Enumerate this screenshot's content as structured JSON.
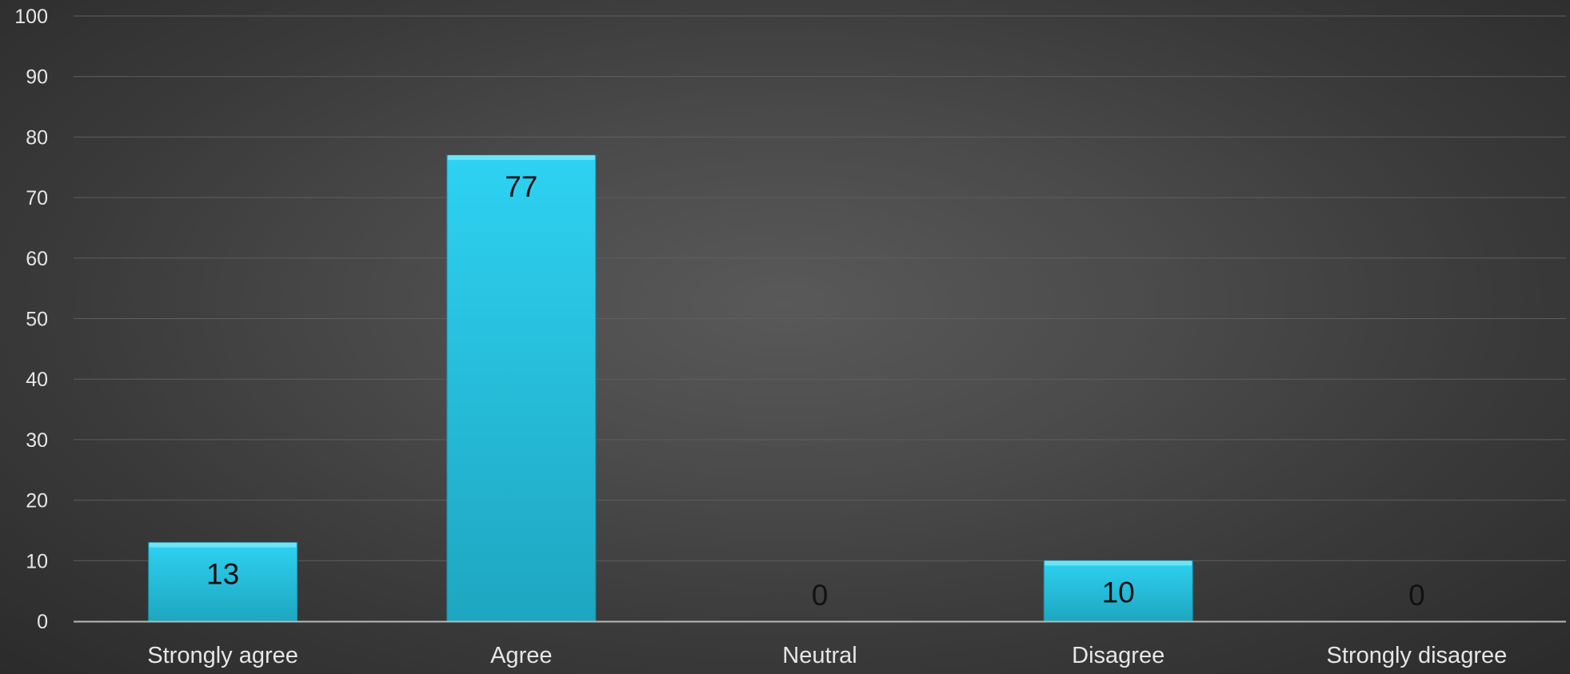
{
  "chart_data": {
    "type": "bar",
    "categories": [
      "Strongly agree",
      "Agree",
      "Neutral",
      "Disagree",
      "Strongly disagree"
    ],
    "values": [
      13,
      77,
      0,
      10,
      0
    ],
    "data_labels": [
      "13",
      "77",
      "0",
      "10",
      "0"
    ],
    "title": "",
    "xlabel": "",
    "ylabel": "",
    "ylim": [
      0,
      100
    ],
    "yticks": [
      0,
      10,
      20,
      30,
      40,
      50,
      60,
      70,
      80,
      90,
      100
    ],
    "grid": true,
    "legend": "none",
    "colors": {
      "bar_top": "#2ed2f2",
      "bar_bottom": "#1ea6c0",
      "bar_edge": "#7ae6f8",
      "gridline": "#5e5e5e",
      "axis": "#b8b8b8",
      "text": "#e6e6e6",
      "data_label": "#111111"
    }
  }
}
